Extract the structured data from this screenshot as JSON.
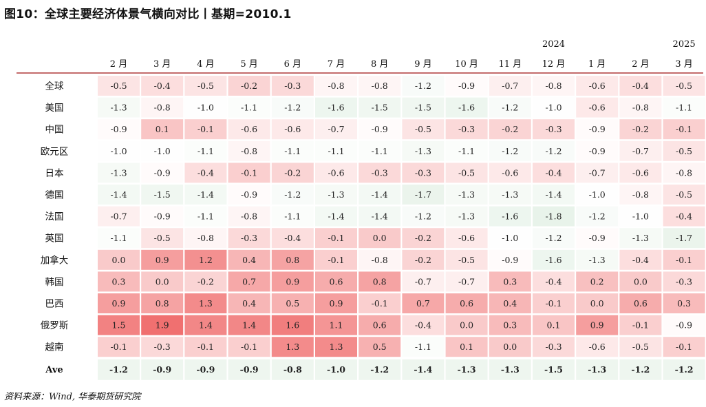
{
  "title": "图10：全球主要经济体景气横向对比丨基期=2010.1",
  "source": "资料来源：Wind, 华泰期货研究院",
  "chart_data": {
    "type": "heatmap",
    "title": "图10：全球主要经济体景气横向对比丨基期=2010.1",
    "year_labels": [
      {
        "label": "2024",
        "col": 10
      },
      {
        "label": "2025",
        "col": 13
      }
    ],
    "columns": [
      "2 月",
      "3 月",
      "4 月",
      "5 月",
      "6 月",
      "7 月",
      "8 月",
      "9 月",
      "10 月",
      "11 月",
      "12 月",
      "1 月",
      "2 月",
      "3 月"
    ],
    "rows": [
      {
        "label": "全球",
        "values": [
          -0.5,
          -0.4,
          -0.5,
          -0.2,
          -0.3,
          -0.8,
          -0.8,
          -1.2,
          -0.9,
          -0.7,
          -0.8,
          -0.6,
          -0.4,
          -0.5
        ]
      },
      {
        "label": "美国",
        "values": [
          -1.3,
          -0.8,
          -1.0,
          -1.1,
          -1.2,
          -1.6,
          -1.5,
          -1.5,
          -1.6,
          -1.2,
          -1.0,
          -0.6,
          -0.8,
          -1.1
        ]
      },
      {
        "label": "中国",
        "values": [
          -0.9,
          0.1,
          -0.1,
          -0.6,
          -0.6,
          -0.7,
          -0.9,
          -0.5,
          -0.3,
          -0.2,
          -0.3,
          -0.9,
          -0.2,
          -0.1
        ]
      },
      {
        "label": "欧元区",
        "values": [
          -1.0,
          -1.0,
          -1.1,
          -0.8,
          -1.1,
          -1.1,
          -1.1,
          -1.3,
          -1.1,
          -1.2,
          -1.2,
          -0.9,
          -0.7,
          -0.5
        ]
      },
      {
        "label": "日本",
        "values": [
          -1.3,
          -0.9,
          -0.4,
          -0.1,
          -0.2,
          -0.6,
          -0.3,
          -0.3,
          -0.5,
          -0.6,
          -0.4,
          -0.7,
          -0.6,
          -0.8
        ]
      },
      {
        "label": "德国",
        "values": [
          -1.4,
          -1.5,
          -1.4,
          -0.9,
          -1.2,
          -1.3,
          -1.4,
          -1.7,
          -1.3,
          -1.3,
          -1.4,
          -1.0,
          -0.8,
          -0.5
        ]
      },
      {
        "label": "法国",
        "values": [
          -0.7,
          -0.9,
          -1.1,
          -0.8,
          -1.1,
          -1.4,
          -1.4,
          -1.2,
          -1.3,
          -1.6,
          -1.8,
          -1.2,
          -1.0,
          -0.4
        ]
      },
      {
        "label": "英国",
        "values": [
          -1.1,
          -0.5,
          -0.8,
          -0.3,
          -0.4,
          -0.1,
          0.0,
          -0.2,
          -0.6,
          -1.0,
          -1.2,
          -0.9,
          -1.3,
          -1.7
        ]
      },
      {
        "label": "加拿大",
        "values": [
          0.0,
          0.9,
          1.2,
          0.4,
          0.8,
          -0.1,
          -0.8,
          -0.2,
          -0.5,
          -0.9,
          -1.6,
          -1.3,
          -0.4,
          -0.1
        ]
      },
      {
        "label": "韩国",
        "values": [
          0.3,
          0.0,
          -0.2,
          0.7,
          0.9,
          0.6,
          0.8,
          -0.7,
          -0.7,
          0.3,
          -0.4,
          0.2,
          0.0,
          -0.3
        ]
      },
      {
        "label": "巴西",
        "values": [
          0.9,
          0.8,
          1.3,
          0.4,
          0.5,
          0.9,
          -0.1,
          0.7,
          0.6,
          0.4,
          -0.1,
          0.0,
          0.6,
          0.3
        ]
      },
      {
        "label": "俄罗斯",
        "values": [
          1.5,
          1.9,
          1.4,
          1.4,
          1.6,
          1.1,
          0.6,
          -0.4,
          0.0,
          0.3,
          0.1,
          0.9,
          -0.1,
          -0.9
        ]
      },
      {
        "label": "越南",
        "values": [
          -0.1,
          -0.3,
          -0.1,
          -0.1,
          1.3,
          1.3,
          0.5,
          -1.1,
          0.1,
          0.0,
          -0.3,
          -0.6,
          -0.5,
          -0.1
        ]
      }
    ],
    "summary_row": {
      "label": "Ave",
      "values": [
        -1.2,
        -0.9,
        -0.9,
        -0.9,
        -0.8,
        -1.0,
        -1.2,
        -1.4,
        -1.3,
        -1.3,
        -1.5,
        -1.3,
        -1.2,
        -1.2
      ]
    },
    "colors": {
      "high": "#f07070",
      "mid": "#ffffff",
      "low": "#e8f3ea",
      "rule": "#b03a3a"
    }
  }
}
